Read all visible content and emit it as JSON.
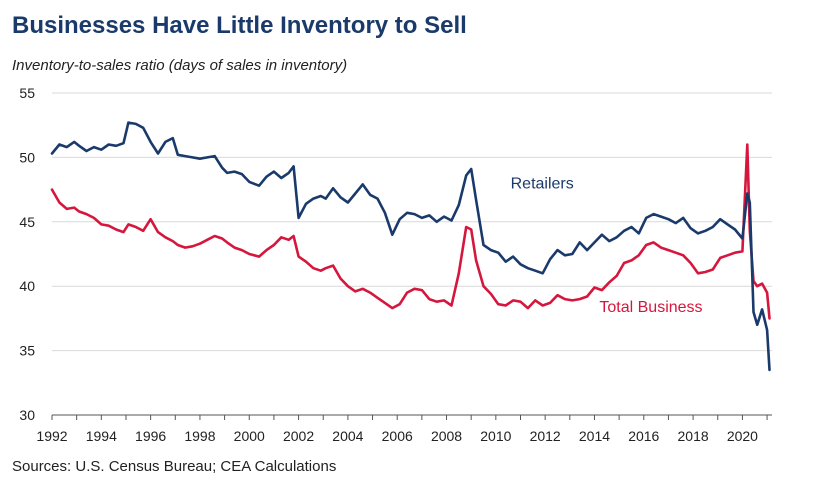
{
  "header": {
    "title": "Businesses Have Little Inventory to Sell",
    "subtitle": "Inventory-to-sales ratio (days of sales in inventory)"
  },
  "footer": {
    "source": "Sources: U.S. Census Bureau; CEA Calculations"
  },
  "colors": {
    "retailers": "#1a3a6b",
    "total_business": "#d5173d",
    "title": "#1a3a6b",
    "gridline": "#d9d9d9",
    "axis": "#555555"
  },
  "chart_data": {
    "type": "line",
    "title": "Businesses Have Little Inventory to Sell",
    "ylabel": "Inventory-to-sales ratio (days of sales in inventory)",
    "xlabel": "",
    "xlim": [
      1992,
      2021.2
    ],
    "ylim": [
      30,
      55
    ],
    "yticks": [
      30,
      35,
      40,
      45,
      50,
      55
    ],
    "xticks": [
      1992,
      1994,
      1996,
      1998,
      2000,
      2002,
      2004,
      2006,
      2008,
      2010,
      2012,
      2014,
      2016,
      2018,
      2020
    ],
    "grid": "horizontal",
    "series": [
      {
        "name": "Retailers",
        "key": "retailers",
        "label_at": [
          2010.6,
          47.6
        ],
        "x": [
          1992.0,
          1992.3,
          1992.6,
          1992.9,
          1993.1,
          1993.4,
          1993.7,
          1994.0,
          1994.3,
          1994.6,
          1994.9,
          1995.1,
          1995.4,
          1995.7,
          1996.0,
          1996.3,
          1996.6,
          1996.9,
          1997.1,
          1997.4,
          1997.7,
          1998.0,
          1998.3,
          1998.6,
          1998.9,
          1999.1,
          1999.4,
          1999.7,
          2000.0,
          2000.4,
          2000.7,
          2001.0,
          2001.3,
          2001.6,
          2001.8,
          2002.0,
          2002.3,
          2002.6,
          2002.9,
          2003.1,
          2003.4,
          2003.7,
          2004.0,
          2004.3,
          2004.6,
          2004.9,
          2005.2,
          2005.5,
          2005.8,
          2006.1,
          2006.4,
          2006.7,
          2007.0,
          2007.3,
          2007.6,
          2007.9,
          2008.2,
          2008.5,
          2008.8,
          2009.0,
          2009.2,
          2009.5,
          2009.8,
          2010.1,
          2010.4,
          2010.7,
          2011.0,
          2011.3,
          2011.6,
          2011.9,
          2012.2,
          2012.5,
          2012.8,
          2013.1,
          2013.4,
          2013.7,
          2014.0,
          2014.3,
          2014.6,
          2014.9,
          2015.2,
          2015.5,
          2015.8,
          2016.1,
          2016.4,
          2016.7,
          2017.0,
          2017.3,
          2017.6,
          2017.9,
          2018.2,
          2018.5,
          2018.8,
          2019.1,
          2019.4,
          2019.7,
          2020.0,
          2020.2,
          2020.3,
          2020.45,
          2020.6,
          2020.8,
          2021.0,
          2021.1
        ],
        "values": [
          50.3,
          51.0,
          50.8,
          51.2,
          50.9,
          50.5,
          50.8,
          50.6,
          51.0,
          50.9,
          51.1,
          52.7,
          52.6,
          52.3,
          51.2,
          50.3,
          51.2,
          51.5,
          50.2,
          50.1,
          50.0,
          49.9,
          50.0,
          50.1,
          49.2,
          48.8,
          48.9,
          48.7,
          48.1,
          47.8,
          48.5,
          48.9,
          48.4,
          48.8,
          49.3,
          45.3,
          46.4,
          46.8,
          47.0,
          46.8,
          47.6,
          46.9,
          46.5,
          47.2,
          47.9,
          47.1,
          46.8,
          45.7,
          44.0,
          45.2,
          45.7,
          45.6,
          45.3,
          45.5,
          45.0,
          45.4,
          45.1,
          46.3,
          48.6,
          49.1,
          46.7,
          43.2,
          42.8,
          42.6,
          41.9,
          42.3,
          41.7,
          41.4,
          41.2,
          41.0,
          42.1,
          42.8,
          42.4,
          42.5,
          43.4,
          42.8,
          43.4,
          44.0,
          43.5,
          43.8,
          44.3,
          44.6,
          44.1,
          45.3,
          45.6,
          45.4,
          45.2,
          44.9,
          45.3,
          44.5,
          44.1,
          44.3,
          44.6,
          45.2,
          44.8,
          44.4,
          43.7,
          47.2,
          46.5,
          38.0,
          37.0,
          38.2,
          36.6,
          33.5
        ]
      },
      {
        "name": "Total Business",
        "key": "total_business",
        "label_at": [
          2014.2,
          38.0
        ],
        "x": [
          1992.0,
          1992.3,
          1992.6,
          1992.9,
          1993.1,
          1993.4,
          1993.7,
          1994.0,
          1994.3,
          1994.6,
          1994.9,
          1995.1,
          1995.4,
          1995.7,
          1996.0,
          1996.3,
          1996.6,
          1996.9,
          1997.1,
          1997.4,
          1997.7,
          1998.0,
          1998.3,
          1998.6,
          1998.9,
          1999.1,
          1999.4,
          1999.7,
          2000.0,
          2000.4,
          2000.7,
          2001.0,
          2001.3,
          2001.6,
          2001.8,
          2002.0,
          2002.3,
          2002.6,
          2002.9,
          2003.1,
          2003.4,
          2003.7,
          2004.0,
          2004.3,
          2004.6,
          2004.9,
          2005.2,
          2005.5,
          2005.8,
          2006.1,
          2006.4,
          2006.7,
          2007.0,
          2007.3,
          2007.6,
          2007.9,
          2008.2,
          2008.5,
          2008.8,
          2009.0,
          2009.2,
          2009.5,
          2009.8,
          2010.1,
          2010.4,
          2010.7,
          2011.0,
          2011.3,
          2011.6,
          2011.9,
          2012.2,
          2012.5,
          2012.8,
          2013.1,
          2013.4,
          2013.7,
          2014.0,
          2014.3,
          2014.6,
          2014.9,
          2015.2,
          2015.5,
          2015.8,
          2016.1,
          2016.4,
          2016.7,
          2017.0,
          2017.3,
          2017.6,
          2017.9,
          2018.2,
          2018.5,
          2018.8,
          2019.1,
          2019.4,
          2019.7,
          2020.0,
          2020.2,
          2020.3,
          2020.45,
          2020.6,
          2020.8,
          2021.0,
          2021.1
        ],
        "values": [
          47.5,
          46.5,
          46.0,
          46.1,
          45.8,
          45.6,
          45.3,
          44.8,
          44.7,
          44.4,
          44.2,
          44.8,
          44.6,
          44.3,
          45.2,
          44.2,
          43.8,
          43.5,
          43.2,
          43.0,
          43.1,
          43.3,
          43.6,
          43.9,
          43.7,
          43.4,
          43.0,
          42.8,
          42.5,
          42.3,
          42.8,
          43.2,
          43.8,
          43.6,
          43.9,
          42.3,
          41.9,
          41.4,
          41.2,
          41.4,
          41.6,
          40.6,
          40.0,
          39.6,
          39.8,
          39.5,
          39.1,
          38.7,
          38.3,
          38.6,
          39.5,
          39.8,
          39.7,
          39.0,
          38.8,
          38.9,
          38.5,
          41.0,
          44.6,
          44.4,
          42.0,
          40.0,
          39.4,
          38.6,
          38.5,
          38.9,
          38.8,
          38.3,
          38.9,
          38.5,
          38.7,
          39.3,
          39.0,
          38.9,
          39.0,
          39.2,
          39.9,
          39.7,
          40.3,
          40.8,
          41.8,
          42.0,
          42.4,
          43.2,
          43.4,
          43.0,
          42.8,
          42.6,
          42.4,
          41.8,
          41.0,
          41.1,
          41.3,
          42.2,
          42.4,
          42.6,
          42.7,
          51.0,
          44.3,
          40.4,
          40.0,
          40.2,
          39.5,
          37.5
        ]
      }
    ]
  }
}
